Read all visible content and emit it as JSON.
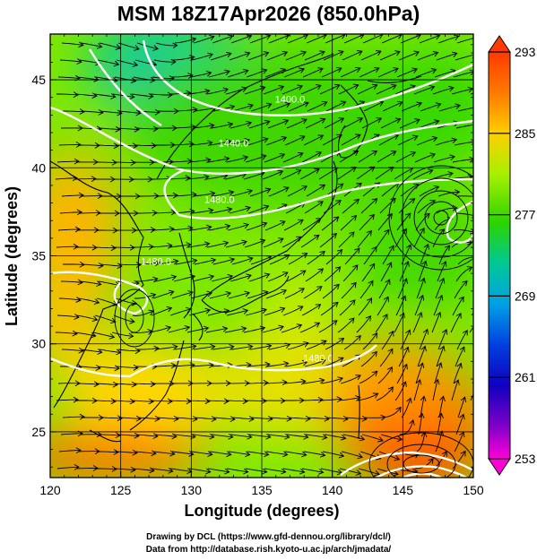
{
  "title": "MSM 18Z17Apr2026 (850.0hPa)",
  "axes": {
    "xlabel": "Longitude (degrees)",
    "ylabel": "Latitude  (degrees)",
    "x_ticks": [
      "120",
      "125",
      "130",
      "135",
      "140",
      "145",
      "150"
    ],
    "y_ticks": [
      "25",
      "30",
      "35",
      "40",
      "45"
    ],
    "xlim": [
      120,
      150
    ],
    "ylim": [
      22.4,
      47.6
    ]
  },
  "colorbar": {
    "labels": [
      "293",
      "285",
      "277",
      "269",
      "261",
      "253"
    ],
    "range": [
      253,
      293
    ],
    "colors_high_to_low": [
      "#ff3a00",
      "#ff7a00",
      "#ffcf00",
      "#a8f000",
      "#2ad400",
      "#00c896",
      "#00a0e6",
      "#0040e0",
      "#1000c0",
      "#8000c8",
      "#ff00d8"
    ]
  },
  "contour_labels": [
    {
      "text": "1400.0",
      "lon": 137,
      "lat": 43.7
    },
    {
      "text": "1440.0",
      "lon": 133,
      "lat": 41.2
    },
    {
      "text": "1480.0",
      "lon": 132,
      "lat": 38.0
    },
    {
      "text": "1480.0",
      "lon": 127.5,
      "lat": 34.5
    },
    {
      "text": "1480.0",
      "lon": 139,
      "lat": 29.0
    }
  ],
  "credits": {
    "line1": "Drawing by DCL (https://www.gfd-dennou.org/library/dcl/)",
    "line2": "Data from http://database.rish.kyoto-u.ac.jp/arch/jmadata/"
  }
}
